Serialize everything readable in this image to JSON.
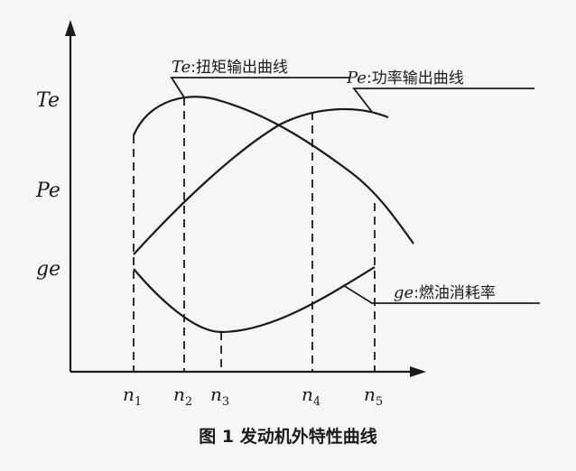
{
  "y_axis_labels": {
    "te": "Te",
    "pe": "Pe",
    "ge": "ge"
  },
  "x_ticks": [
    {
      "base": "n",
      "sub": "1"
    },
    {
      "base": "n",
      "sub": "2"
    },
    {
      "base": "n",
      "sub": "3"
    },
    {
      "base": "n",
      "sub": "4"
    },
    {
      "base": "n",
      "sub": "5"
    }
  ],
  "annotations": {
    "te": {
      "symbol": "Te",
      "text": ":扭矩输出曲线"
    },
    "pe": {
      "symbol": "Pe",
      "text": ":功率输出曲线"
    },
    "ge": {
      "symbol": "ge",
      "text": ":燃油消耗率"
    }
  },
  "caption": "图 1  发动机外特性曲线"
}
